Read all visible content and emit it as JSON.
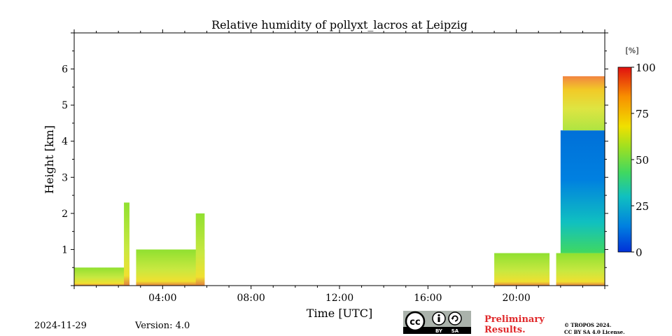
{
  "chart_data": {
    "type": "heatmap",
    "title": "Relative humidity of pollyxt_lacros at Leipzig",
    "xlabel": "Time [UTC]",
    "ylabel": "Height [km]",
    "x_range_hours": [
      0,
      24
    ],
    "y_range_km": [
      0,
      7
    ],
    "x_ticks": [
      {
        "value": 4,
        "label": "04:00"
      },
      {
        "value": 8,
        "label": "08:00"
      },
      {
        "value": 12,
        "label": "12:00"
      },
      {
        "value": 16,
        "label": "16:00"
      },
      {
        "value": 20,
        "label": "20:00"
      }
    ],
    "y_ticks": [
      {
        "value": 1,
        "label": "1"
      },
      {
        "value": 2,
        "label": "2"
      },
      {
        "value": 3,
        "label": "3"
      },
      {
        "value": 4,
        "label": "4"
      },
      {
        "value": 5,
        "label": "5"
      },
      {
        "value": 6,
        "label": "6"
      }
    ],
    "colorbar": {
      "unit": "[%]",
      "range": [
        0,
        100
      ],
      "ticks": [
        {
          "value": 0,
          "label": "0"
        },
        {
          "value": 25,
          "label": "25"
        },
        {
          "value": 50,
          "label": "50"
        },
        {
          "value": 75,
          "label": "75"
        },
        {
          "value": 100,
          "label": "100"
        }
      ],
      "colors": [
        "#0030d8",
        "#0080e0",
        "#10c0c0",
        "#40d860",
        "#a0e020",
        "#f0e000",
        "#f89000",
        "#e01010"
      ]
    },
    "data_blocks": [
      {
        "t_start": 0.0,
        "t_end": 2.5,
        "h_top_km": 0.5,
        "rh_pct": 58,
        "note": "lowest layer 0-0.1 km ~80%"
      },
      {
        "t_start": 2.25,
        "t_end": 2.5,
        "h_top_km": 2.3,
        "rh_pct": 55,
        "note": "spike"
      },
      {
        "t_start": 2.8,
        "t_end": 5.9,
        "h_top_km": 1.0,
        "rh_pct": 55
      },
      {
        "t_start": 5.5,
        "t_end": 5.9,
        "h_top_km": 2.0,
        "rh_pct": 55,
        "note": "spike"
      },
      {
        "t_start": 19.0,
        "t_end": 21.5,
        "h_top_km": 0.9,
        "rh_pct": 52
      },
      {
        "t_start": 21.8,
        "t_end": 24.0,
        "h_top_km": 0.9,
        "rh_pct": 50
      },
      {
        "t_start": 22.0,
        "t_end": 24.0,
        "h_bottom_km": 0.9,
        "h_top_km": 4.3,
        "rh_pct": 15,
        "note": "moist lower, dry aloft"
      },
      {
        "t_start": 22.1,
        "t_end": 24.0,
        "h_bottom_km": 4.3,
        "h_top_km": 5.8,
        "rh_pct": 65,
        "note": "upper layer 60-95%"
      }
    ]
  },
  "footer": {
    "date": "2024-11-29",
    "version": "Version: 4.0",
    "license_badge": {
      "cc": "cc",
      "by": "BY",
      "sa": "SA"
    },
    "preliminary_line1": "Preliminary",
    "preliminary_line2": "Results.",
    "copyright_line1": "© TROPOS 2024.",
    "copyright_line2": "CC BY SA 4.0 License."
  }
}
